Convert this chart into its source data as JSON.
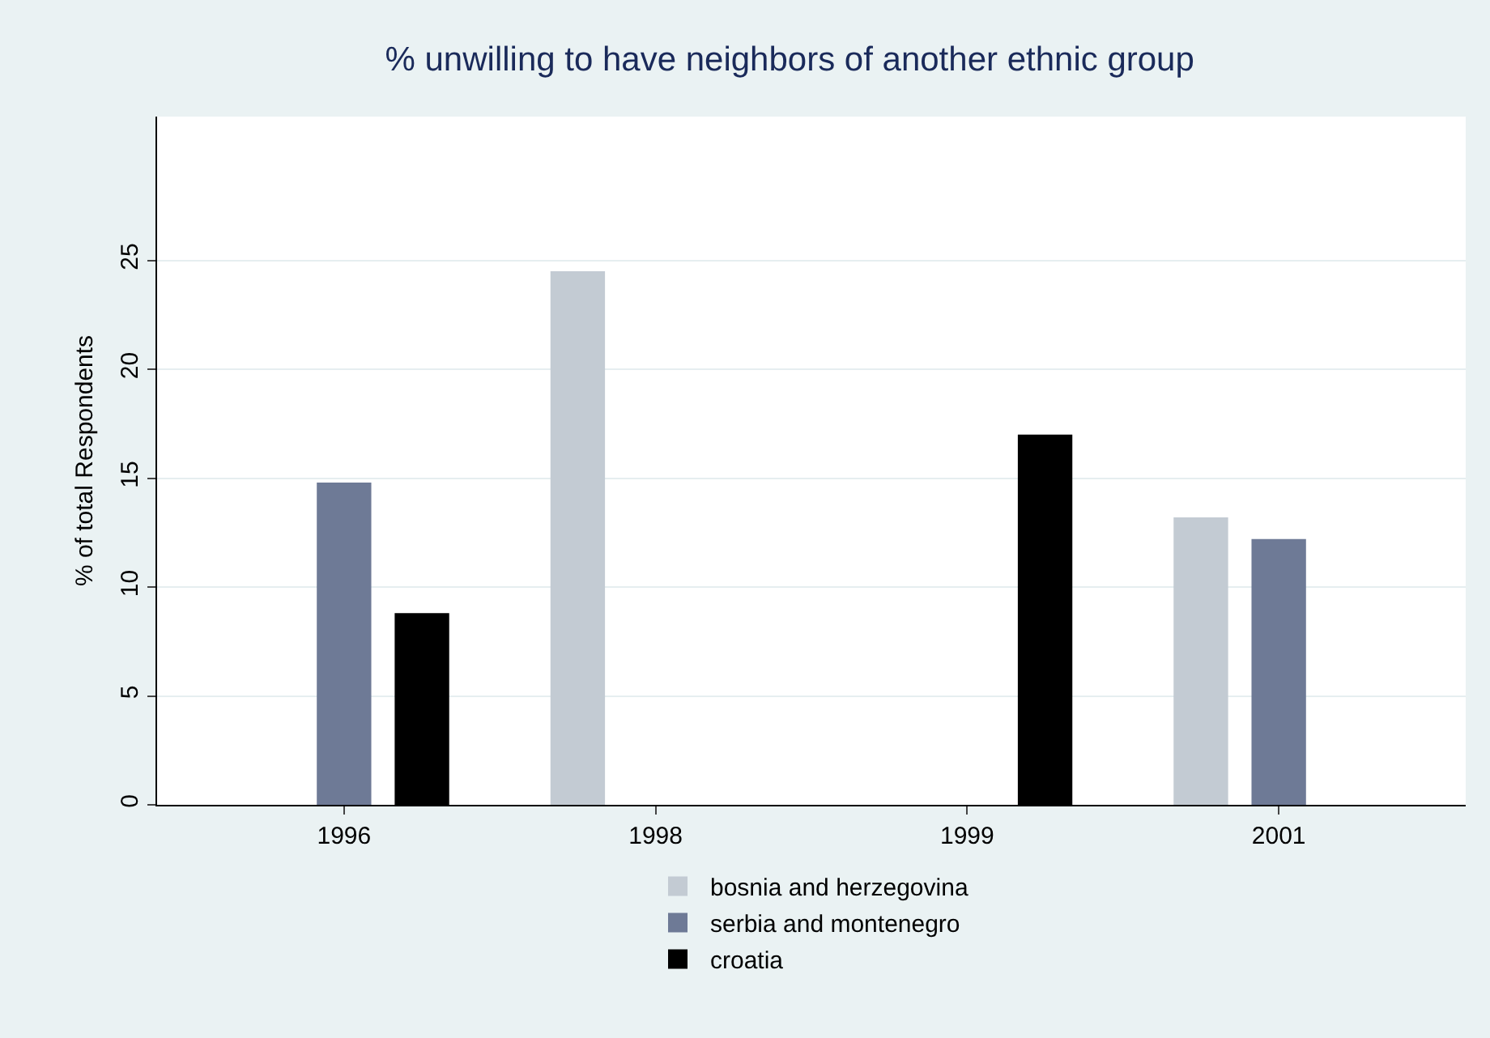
{
  "chart_data": {
    "type": "bar",
    "title": "% unwilling to have neighbors of another ethnic group",
    "ylabel": "% of total Respondents",
    "categories": [
      "1996",
      "1998",
      "1999",
      "2001"
    ],
    "series": [
      {
        "name": "bosnia and herzegovina",
        "color": "#c3cbd3",
        "values": [
          null,
          24.5,
          null,
          13.2
        ]
      },
      {
        "name": "serbia and montenegro",
        "color": "#6e7a96",
        "values": [
          14.8,
          null,
          null,
          12.2
        ]
      },
      {
        "name": "croatia",
        "color": "#000000",
        "values": [
          8.8,
          null,
          17,
          null
        ]
      }
    ],
    "ylim": [
      0,
      31.6
    ],
    "yticks": [
      0,
      5,
      10,
      15,
      20,
      25
    ],
    "grid": "y",
    "legend": "bottom"
  }
}
